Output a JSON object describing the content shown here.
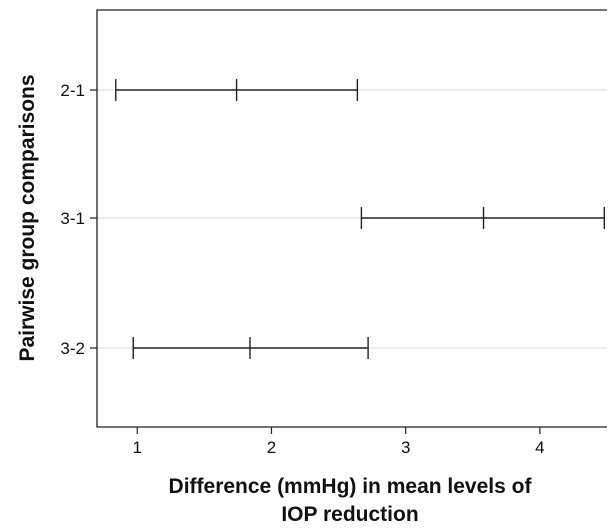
{
  "chart_data": {
    "type": "interval",
    "title": "",
    "xlabel_lines": [
      "Difference (mmHg) in mean levels of",
      "IOP reduction"
    ],
    "ylabel": "Pairwise group comparisons",
    "xlim": [
      0.7,
      4.5
    ],
    "x_ticks": [
      1,
      2,
      3,
      4
    ],
    "grid": "horizontal",
    "categories": [
      "2-1",
      "3-1",
      "3-2"
    ],
    "intervals": [
      {
        "label": "2-1",
        "lower": 0.84,
        "mean": 1.74,
        "upper": 2.64
      },
      {
        "label": "3-1",
        "lower": 2.67,
        "mean": 3.58,
        "upper": 4.48
      },
      {
        "label": "3-2",
        "lower": 0.97,
        "mean": 1.84,
        "upper": 2.72
      }
    ],
    "colors": {
      "line": "#222222",
      "grid": "#d9d9d9",
      "frame": "#222222"
    }
  }
}
